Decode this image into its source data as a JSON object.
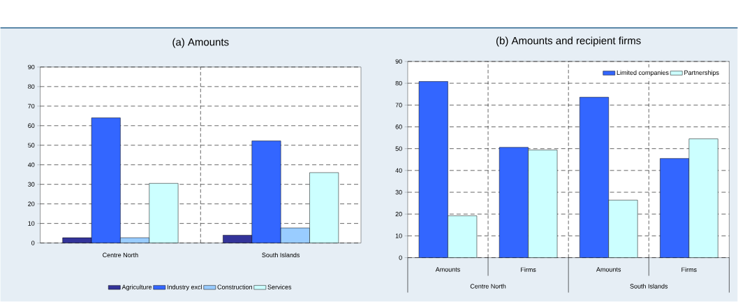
{
  "chart_data": [
    {
      "type": "bar",
      "title": "(a) Amounts",
      "categories": [
        "Centre North",
        "South Islands"
      ],
      "series": [
        {
          "name": "Agriculture",
          "color": "#333399",
          "values": [
            2.7,
            4
          ]
        },
        {
          "name": "Industry excl",
          "color": "#3366ff",
          "values": [
            64,
            52.2
          ]
        },
        {
          "name": "Construction",
          "color": "#99ccff",
          "values": [
            2.7,
            7.7
          ]
        },
        {
          "name": "Services",
          "color": "#ccffff",
          "values": [
            30.5,
            36
          ]
        }
      ],
      "ylim": [
        0,
        90
      ],
      "yticks": [
        0,
        10,
        20,
        30,
        40,
        50,
        60,
        70,
        80,
        90
      ],
      "grid": true,
      "legend": "bottom"
    },
    {
      "type": "bar",
      "title": "(b) Amounts and recipient firms",
      "categories": [
        "Amounts",
        "Firms",
        "Amounts",
        "Firms"
      ],
      "series": [
        {
          "name": "Limited companies",
          "color": "#3366ff",
          "values": [
            80.8,
            50.6,
            73.6,
            45.5
          ]
        },
        {
          "name": "Partnerships",
          "color": "#ccffff",
          "values": [
            19.2,
            49.4,
            26.4,
            54.5
          ]
        }
      ],
      "ylim": [
        0,
        90
      ],
      "yticks": [
        0,
        10,
        20,
        30,
        40,
        50,
        60,
        70,
        80,
        90
      ],
      "grid": true,
      "legend": "top right",
      "annotations": [
        "Centre North",
        "South Islands"
      ]
    }
  ]
}
